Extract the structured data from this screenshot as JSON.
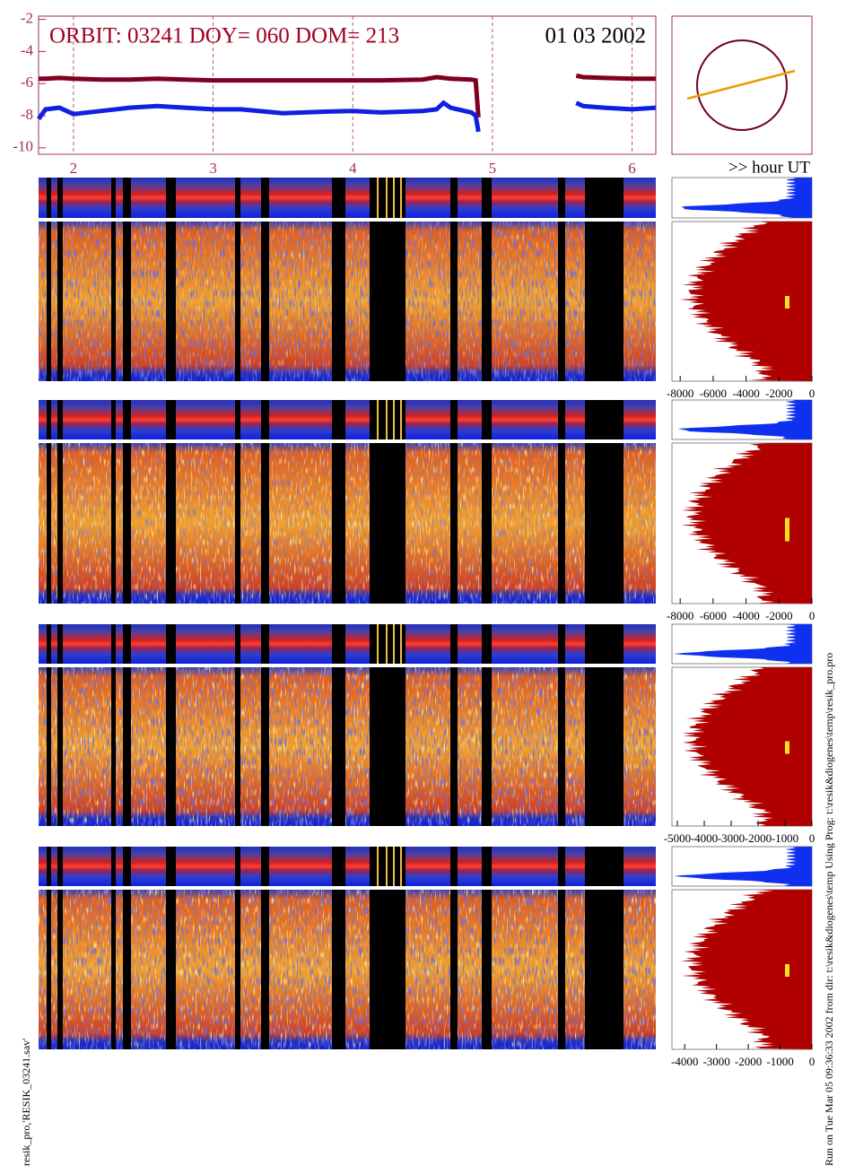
{
  "header": {
    "title": "ORBIT: 03241 DOY=  060 DOM=  213",
    "date": "01 03 2002",
    "x_axis_label": ">> hour UT"
  },
  "chart_data": {
    "type": "line",
    "x": [
      1.75,
      1.8,
      1.9,
      2.0,
      2.2,
      2.4,
      2.6,
      2.8,
      3.0,
      3.2,
      3.5,
      3.8,
      4.0,
      4.2,
      4.5,
      4.6,
      4.65,
      4.7,
      4.85,
      4.88,
      4.9,
      5.2,
      5.6,
      5.65,
      5.8,
      6.0,
      6.17
    ],
    "series": [
      {
        "color": "#800020",
        "values": [
          -5.7,
          -5.7,
          -5.65,
          -5.7,
          -5.75,
          -5.75,
          -5.7,
          -5.75,
          -5.8,
          -5.8,
          -5.8,
          -5.8,
          -5.8,
          -5.8,
          -5.75,
          -5.6,
          -5.65,
          -5.7,
          -5.75,
          -5.8,
          -8.1,
          null,
          -5.5,
          -5.6,
          -5.65,
          -5.7,
          -5.7
        ]
      },
      {
        "color": "#1020e0",
        "values": [
          -8.2,
          -7.6,
          -7.5,
          -7.9,
          -7.7,
          -7.5,
          -7.4,
          -7.5,
          -7.6,
          -7.6,
          -7.85,
          -7.75,
          -7.7,
          -7.8,
          -7.7,
          -7.6,
          -7.2,
          -7.5,
          -7.8,
          -8.0,
          -9.0,
          null,
          -7.2,
          -7.4,
          -7.5,
          -7.6,
          -7.5
        ]
      }
    ],
    "xlim": [
      1.75,
      6.17
    ],
    "xticks": [
      2,
      3,
      4,
      5,
      6
    ],
    "ylim": [
      -10.4,
      -1.8
    ],
    "yticks": [
      -10,
      -8,
      -6,
      -4,
      -2
    ],
    "grid": true
  },
  "side_panels": [
    {
      "xlim": [
        -8500,
        0
      ],
      "xticks": [
        -8000,
        -6000,
        -4000,
        -2000,
        0
      ]
    },
    {
      "xlim": [
        -8500,
        0
      ],
      "xticks": [
        -8000,
        -6000,
        -4000,
        -2000,
        0
      ]
    },
    {
      "xlim": [
        -5200,
        0
      ],
      "xticks": [
        -5000,
        -4000,
        -3000,
        -2000,
        -1000,
        0
      ]
    },
    {
      "xlim": [
        -4400,
        0
      ],
      "xticks": [
        -4000,
        -3000,
        -2000,
        -1000,
        0
      ]
    }
  ],
  "footer": {
    "left_note": "resik_pro,'RESIK_03241.sav'",
    "right_note": "Run on Tue Mar 05 09:36:33 2002  from dir: t:\\resik&diogenes\\temp Using Prog: t:\\resik&diogenes\\temp\\resik_pro.pro"
  }
}
